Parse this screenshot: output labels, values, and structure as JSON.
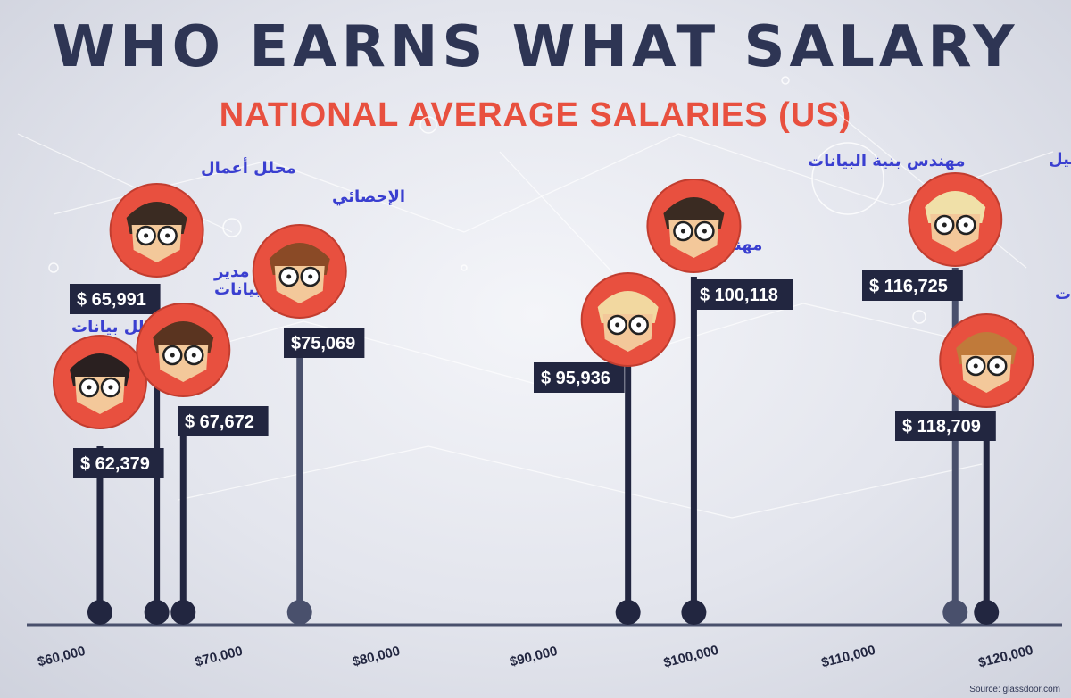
{
  "title": "WHO EARNS WHAT SALARY",
  "subtitle": "NATIONAL AVERAGE SALARIES (US)",
  "source": "Source: glassdoor.com",
  "colors": {
    "dark_navy": "#222640",
    "slate": "#49506c",
    "accent_red": "#e8503f",
    "label_text": "#3a3fd0"
  },
  "chart_data": {
    "type": "scatter",
    "title": "WHO EARNS WHAT SALARY",
    "subtitle": "NATIONAL AVERAGE SALARIES (US)",
    "xlabel": "",
    "ylabel": "",
    "xlim": [
      60000,
      120000
    ],
    "x_ticks": [
      "$60,000",
      "$70,000",
      "$80,000",
      "$90,000",
      "$100,000",
      "$110,000",
      "$120,000"
    ],
    "grid": false,
    "points": [
      {
        "role": "محلل بيانات",
        "salary": 62379,
        "label": "$ 62,379",
        "stem": "dark",
        "icon": "data-analyst-avatar-icon"
      },
      {
        "role": "محلل أعمال",
        "salary": 65991,
        "label": "$ 65,991",
        "stem": "dark",
        "icon": "business-analyst-avatar-icon"
      },
      {
        "role": "مدير قواعد البيانات",
        "salary": 67672,
        "label": "$ 67,672",
        "stem": "dark",
        "icon": "database-manager-avatar-icon"
      },
      {
        "role": "الإحصائي",
        "salary": 75069,
        "label": "$75,069",
        "stem": "slate",
        "icon": "statistician-avatar-icon"
      },
      {
        "role": "مهندس بيانات",
        "salary": 95936,
        "label": "$ 95,936",
        "stem": "dark",
        "icon": "data-engineer-avatar-icon"
      },
      {
        "role": "مهندس بنية البيانات",
        "salary": 100118,
        "label": "$ 100,118",
        "stem": "dark",
        "icon": "data-architect-avatar-icon"
      },
      {
        "role": "مدير البيانات والتحليل",
        "salary": 116725,
        "label": "$ 116,725",
        "stem": "slate",
        "icon": "analytics-manager-avatar-icon"
      },
      {
        "role": "عالم بيانات",
        "salary": 118709,
        "label": "$ 118,709",
        "stem": "dark",
        "icon": "data-scientist-avatar-icon"
      }
    ]
  }
}
